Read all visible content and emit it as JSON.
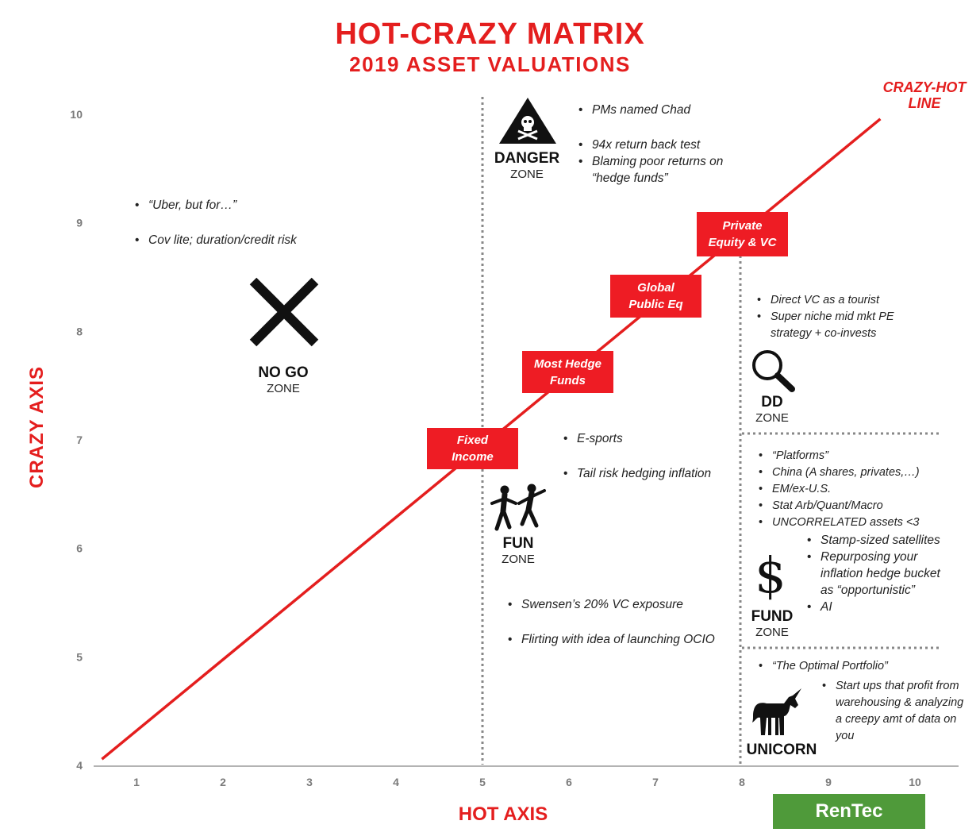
{
  "chart_data": {
    "type": "line",
    "title": "HOT-CRAZY MATRIX",
    "subtitle": "2019 ASSET VALUATIONS",
    "xlabel": "HOT AXIS",
    "ylabel": "CRAZY AXIS",
    "xlim": [
      0,
      10.5
    ],
    "ylim": [
      4,
      10.3
    ],
    "x_ticks": [
      1,
      2,
      3,
      4,
      5,
      6,
      7,
      8,
      9,
      10
    ],
    "y_ticks": [
      4,
      5,
      6,
      7,
      8,
      9,
      10
    ],
    "series": [
      {
        "name": "CRAZY-HOT LINE",
        "x": [
          0.6,
          9.6
        ],
        "y": [
          4.05,
          9.95
        ]
      }
    ],
    "series_label": [
      "CRAZY-HOT",
      "LINE"
    ],
    "dividers": {
      "x_vertical_1": 5,
      "x_vertical_2": 8
    },
    "labels_on_line": [
      {
        "lines": [
          "Fixed",
          "Income"
        ],
        "x": 5.0,
        "y": 6.85
      },
      {
        "lines": [
          "Most Hedge",
          "Funds"
        ],
        "x": 6.0,
        "y": 7.55
      },
      {
        "lines": [
          "Global",
          "Public Eq"
        ],
        "x": 7.0,
        "y": 8.25
      },
      {
        "lines": [
          "Private",
          "Equity & VC"
        ],
        "x": 7.8,
        "y": 8.85
      }
    ],
    "zones": [
      {
        "name": "NO GO",
        "sub": "ZONE",
        "icon": "x-mark-icon"
      },
      {
        "name": "DANGER",
        "sub": "ZONE",
        "icon": "skull-warning-icon"
      },
      {
        "name": "FUN",
        "sub": "ZONE",
        "icon": "dancing-people-icon"
      },
      {
        "name": "DD",
        "sub": "ZONE",
        "icon": "magnifier-icon"
      },
      {
        "name": "FUND",
        "sub": "ZONE",
        "icon": "dollar-icon"
      },
      {
        "name": "UNICORN",
        "sub": "",
        "icon": "unicorn-icon"
      }
    ],
    "annotations": {
      "no_go": [
        "“Uber, but for…”",
        "Cov lite; duration/credit risk"
      ],
      "danger_1": [
        "PMs named Chad"
      ],
      "danger_2": [
        "94x return back test",
        "Blaming poor returns on “hedge funds”"
      ],
      "fun_top_1": [
        "E-sports"
      ],
      "fun_top_2": [
        "Tail risk hedging inflation"
      ],
      "fun_bottom_1": [
        "Swensen’s 20% VC exposure"
      ],
      "fun_bottom_2": [
        "Flirting with idea of launching OCIO"
      ],
      "dd": [
        "Direct VC as a tourist",
        "Super niche mid mkt PE strategy + co-invests"
      ],
      "fund_top": [
        "“Platforms”",
        "China (A shares, privates,…)",
        "EM/ex-U.S.",
        "Stat Arb/Quant/Macro",
        "UNCORRELATED assets <3"
      ],
      "fund_sub": [
        "Stamp-sized satellites",
        "Repurposing your inflation hedge bucket as “opportunistic”",
        "AI"
      ],
      "unicorn_top": [
        "“The Optimal Portfolio”"
      ],
      "unicorn_sub": [
        "Start ups that profit from warehousing & analyzing a creepy amt of data on you"
      ]
    },
    "footer_badge": "RenTec",
    "colors": {
      "accent": "#e41e1e",
      "box": "#ee1c24",
      "badge": "#4f9a3a",
      "divider": "#888888"
    }
  }
}
